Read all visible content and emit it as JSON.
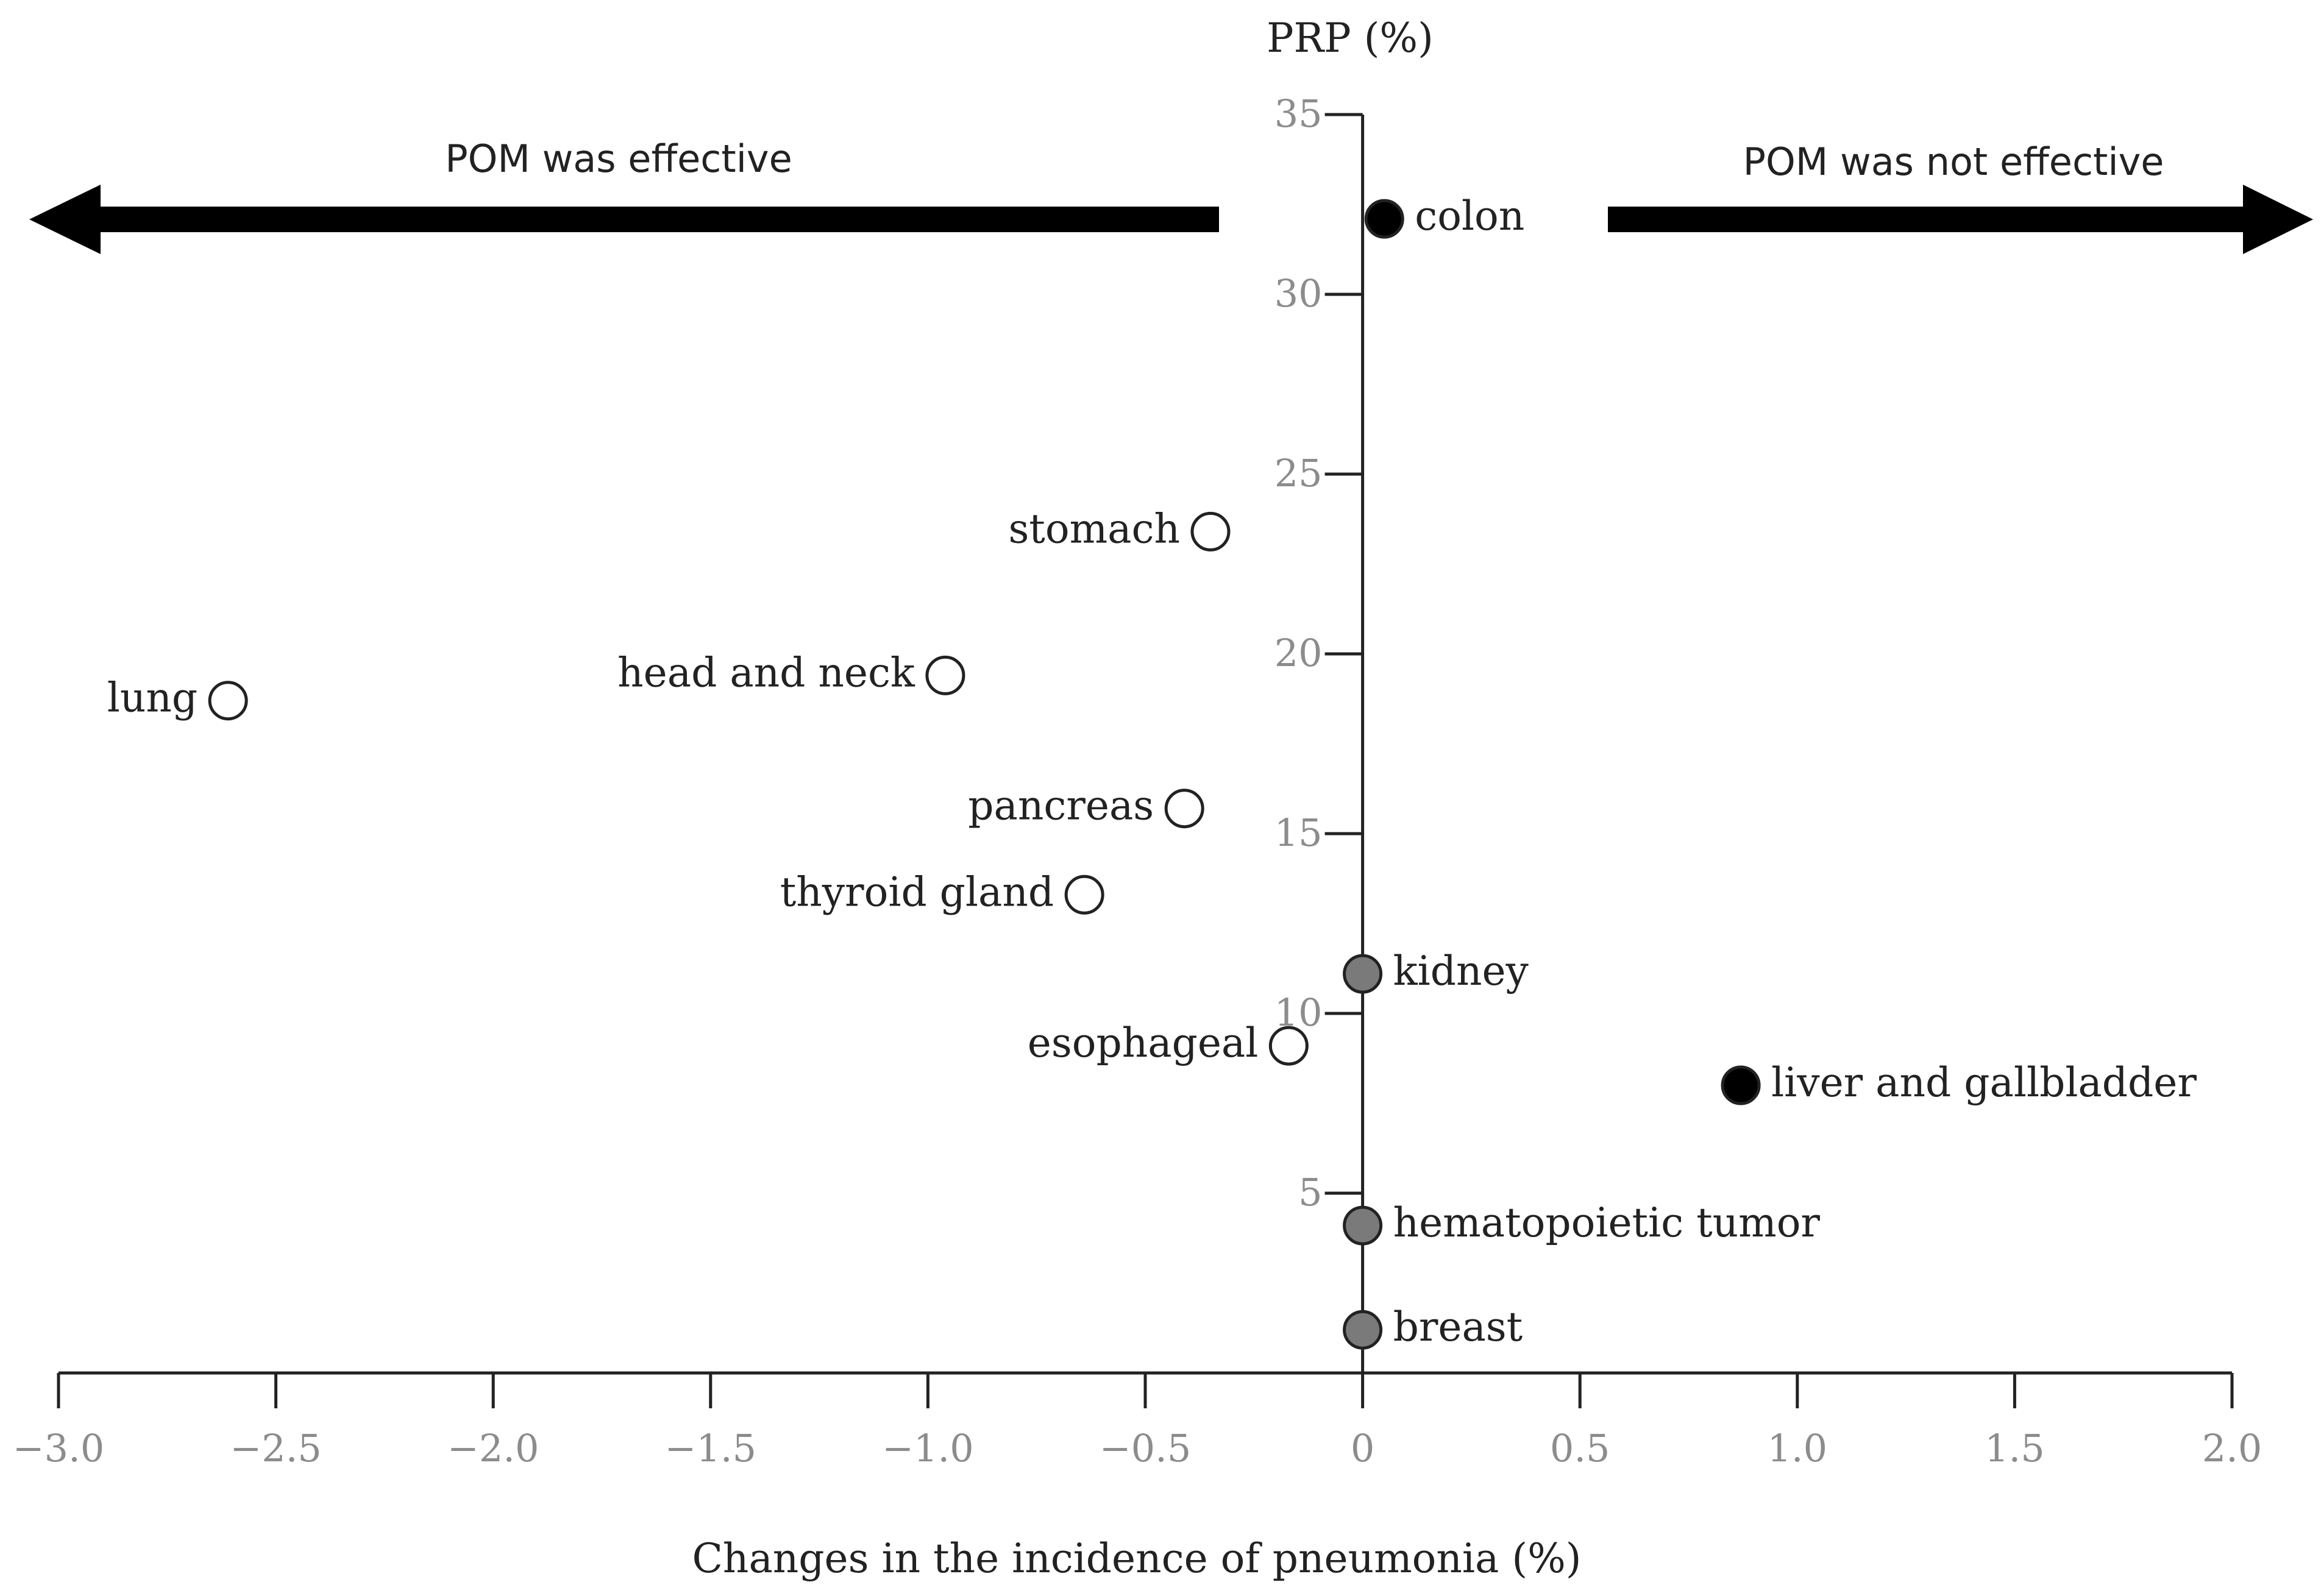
{
  "chart_data": {
    "type": "scatter",
    "xlabel": "Changes in the incidence of pneumonia (%)",
    "ylabel": "PRP (%)",
    "xlim": [
      -3.0,
      2.0
    ],
    "ylim": [
      0,
      35
    ],
    "x_ticks": [
      -3.0,
      -2.5,
      -2.0,
      -1.5,
      -1.0,
      -0.5,
      0,
      0.5,
      1.0,
      1.5,
      2.0
    ],
    "x_tick_labels": [
      "−3.0",
      "−2.5",
      "−2.0",
      "−1.5",
      "−1.0",
      "−0.5",
      "0",
      "0.5",
      "1.0",
      "1.5",
      "2.0"
    ],
    "y_ticks": [
      5,
      10,
      15,
      20,
      25,
      30,
      35
    ],
    "y_tick_labels": [
      "5",
      "10",
      "15",
      "20",
      "25",
      "30",
      "35"
    ],
    "grid": false,
    "annotations": {
      "left_arrow": "POM was effective",
      "right_arrow": "POM was  not effective"
    },
    "colors": {
      "open": "#ffffff",
      "gray": "#7a7a7a",
      "black": "#000000"
    },
    "points": [
      {
        "label": "colon",
        "x": 0.05,
        "y": 32.1,
        "style": "black"
      },
      {
        "label": "stomach",
        "x": -0.35,
        "y": 23.4,
        "style": "open"
      },
      {
        "label": "head and neck",
        "x": -0.96,
        "y": 19.4,
        "style": "open"
      },
      {
        "label": "lung",
        "x": -2.61,
        "y": 18.7,
        "style": "open"
      },
      {
        "label": "pancreas",
        "x": -0.41,
        "y": 15.7,
        "style": "open"
      },
      {
        "label": "thyroid gland",
        "x": -0.64,
        "y": 13.3,
        "style": "open"
      },
      {
        "label": "kidney",
        "x": 0.0,
        "y": 11.1,
        "style": "gray"
      },
      {
        "label": "esophageal",
        "x": -0.17,
        "y": 9.1,
        "style": "open"
      },
      {
        "label": "liver and gallbladder",
        "x": 0.87,
        "y": 8.0,
        "style": "black"
      },
      {
        "label": "hematopoietic  tumor",
        "x": 0.0,
        "y": 4.1,
        "style": "gray"
      },
      {
        "label": "breast",
        "x": 0.0,
        "y": 1.2,
        "style": "gray"
      }
    ]
  }
}
